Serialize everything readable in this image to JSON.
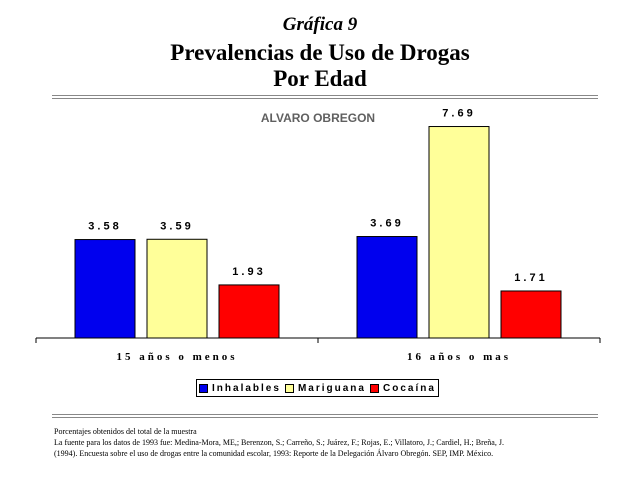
{
  "header": {
    "supertitle": "Gráfica 9",
    "title_line1": "Prevalencias de Uso de Drogas",
    "title_line2": "Por Edad"
  },
  "colors": {
    "inhalables": "#0000ee",
    "mariguana": "#ffff99",
    "cocaina": "#ff0000"
  },
  "chart_data": {
    "type": "bar",
    "subtitle": "ALVARO OBREGON",
    "categories": [
      "15 años o menos",
      "16 años o mas"
    ],
    "series": [
      {
        "name": "Inhalables",
        "values": [
          3.58,
          3.69
        ],
        "labels": [
          "3.58",
          "3.69"
        ]
      },
      {
        "name": "Mariguana",
        "values": [
          3.59,
          7.69
        ],
        "labels": [
          "3.59",
          "7.69"
        ]
      },
      {
        "name": "Cocaína",
        "values": [
          1.93,
          1.71
        ],
        "labels": [
          "1.93",
          "1.71"
        ]
      }
    ],
    "xlabel": "",
    "ylabel": "",
    "ylim": [
      0,
      8
    ],
    "grid": false,
    "legend_position": "bottom"
  },
  "footnote": {
    "line1": "Porcentajes obtenidos del total de la muestra",
    "line2": "La fuente para los datos de 1993 fue: Medina-Mora, ME,; Berenzon, S.; Carreño, S.; Juárez, F.; Rojas, E.; Villatoro, J.; Cardiel, H.; Breña, J.",
    "line3": "(1994). Encuesta sobre el uso de drogas entre la comunidad escolar, 1993: Reporte de la Delegación Álvaro Obregón. SEP, IMP. México."
  }
}
